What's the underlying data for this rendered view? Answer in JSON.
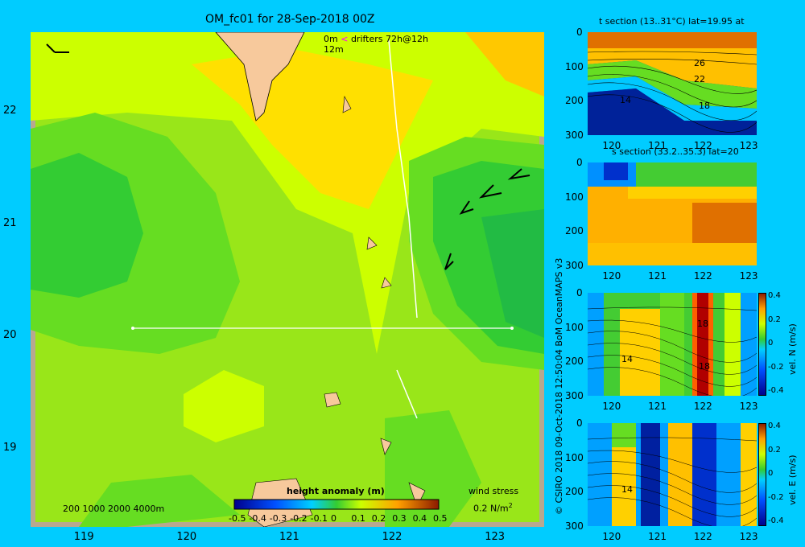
{
  "map": {
    "title": "OM_fc01 for 28-Sep-2018 00Z",
    "legend_drifters": {
      "depth1": "0m",
      "depth2": "12m",
      "label": "drifters 72h@12h"
    },
    "depth_legend": "200  1000  2000  4000m",
    "colorbar_title": "height anomaly (m)",
    "colorbar_ticks": [
      "-0.5",
      "-0.4",
      "-0.3",
      "-0.2",
      "-0.1",
      "0",
      "0.1",
      "0.2",
      "0.3",
      "0.4",
      "0.5"
    ],
    "wind_stress": {
      "label": "wind stress",
      "scale": "0.2 N/m",
      "sup": "2"
    },
    "x_ticks": [
      "119",
      "120",
      "121",
      "122",
      "123"
    ],
    "y_ticks": [
      "22",
      "21",
      "20",
      "19"
    ],
    "colors": {
      "background": "#00ccff",
      "land": "#f7c99c"
    }
  },
  "credit": "© CSIRO 2018   09-Oct-2018 12:50:04 BoM OceanMAPS v3",
  "panels": {
    "t_section": {
      "title": "t section (13..31°C) lat=19.95 at",
      "contour_labels": [
        "26",
        "22",
        "18",
        "14"
      ]
    },
    "s_section": {
      "title": "s section (33.2..35.3) lat=20"
    },
    "vel_n": {
      "unit_label": "vel. N (m/s)",
      "contour_labels": [
        "14",
        "18",
        "18"
      ]
    },
    "vel_e": {
      "unit_label": "vel. E (m/s)",
      "contour_labels": [
        "14"
      ]
    },
    "y_ticks": [
      "0",
      "100",
      "200",
      "300"
    ],
    "x_ticks": [
      "120",
      "121",
      "122",
      "123"
    ],
    "cbar_ticks": [
      "0.4",
      "0.2",
      "0",
      "-0.2",
      "-0.4"
    ]
  },
  "chart_data": [
    {
      "type": "heatmap",
      "title": "OM_fc01 for 28-Sep-2018 00Z",
      "variable": "height anomaly (m)",
      "xlim": [
        118.5,
        123.5
      ],
      "ylim": [
        18.3,
        22.7
      ],
      "x_ticks": [
        119,
        120,
        121,
        122,
        123
      ],
      "y_ticks": [
        19,
        20,
        21,
        22
      ],
      "color_range": [
        -0.5,
        0.5
      ],
      "section_line": {
        "lat": 20,
        "lon_range": [
          119.5,
          123
        ]
      }
    },
    {
      "type": "heatmap",
      "title": "t section (13..31°C) lat=19.95 at",
      "xlim": [
        119.5,
        123.2
      ],
      "ylim": [
        300,
        0
      ],
      "range": [
        13,
        31
      ]
    },
    {
      "type": "heatmap",
      "title": "s section (33.2..35.3) lat=20",
      "xlim": [
        119.5,
        123.2
      ],
      "ylim": [
        300,
        0
      ],
      "range": [
        33.2,
        35.3
      ]
    },
    {
      "type": "heatmap",
      "variable": "vel. N (m/s)",
      "xlim": [
        119.5,
        123.2
      ],
      "ylim": [
        300,
        0
      ],
      "range": [
        -0.4,
        0.4
      ]
    },
    {
      "type": "heatmap",
      "variable": "vel. E (m/s)",
      "xlim": [
        119.5,
        123.2
      ],
      "ylim": [
        300,
        0
      ],
      "range": [
        -0.4,
        0.4
      ]
    }
  ]
}
